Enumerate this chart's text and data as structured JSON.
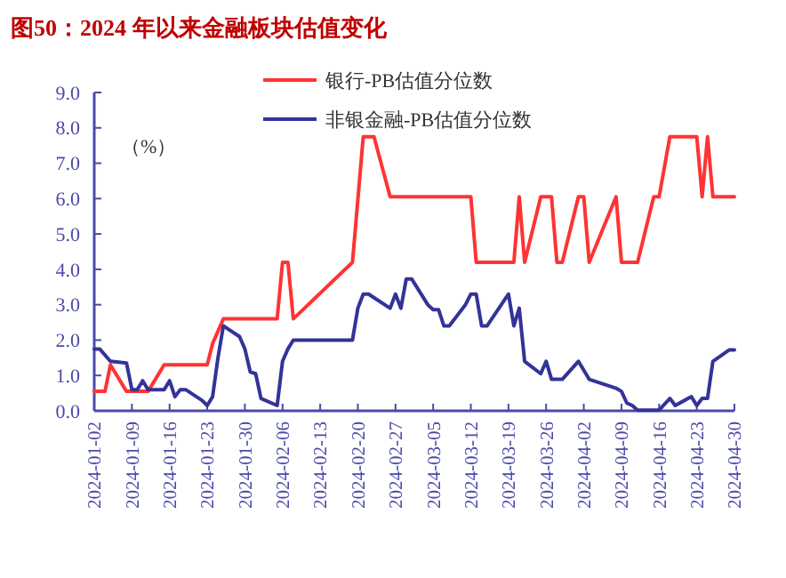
{
  "chart_data": {
    "type": "line",
    "title": "图50：2024 年以来金融板块估值变化",
    "ylabel": "（%）",
    "x": [
      "2024-01-02",
      "2024-01-04",
      "2024-01-05",
      "2024-01-08",
      "2024-01-12",
      "2024-01-15",
      "2024-01-23",
      "2024-01-24",
      "2024-01-26",
      "2024-02-05",
      "2024-02-06",
      "2024-02-07",
      "2024-02-08",
      "2024-02-19",
      "2024-02-21",
      "2024-02-23",
      "2024-02-26",
      "2024-03-12",
      "2024-03-13",
      "2024-03-20",
      "2024-03-21",
      "2024-03-22",
      "2024-03-25",
      "2024-03-27",
      "2024-03-28",
      "2024-03-29",
      "2024-04-01",
      "2024-04-02",
      "2024-04-03",
      "2024-04-08",
      "2024-04-09",
      "2024-04-12",
      "2024-04-15",
      "2024-04-16",
      "2024-04-18",
      "2024-04-23",
      "2024-04-24",
      "2024-04-25",
      "2024-04-26",
      "2024-04-30"
    ],
    "series": [
      {
        "name": "银行-PB估值分位数",
        "color": "#ff3333",
        "values": [
          0.55,
          0.55,
          1.3,
          0.55,
          0.55,
          1.3,
          1.3,
          1.9,
          2.6,
          2.6,
          4.2,
          4.2,
          2.6,
          4.2,
          7.75,
          7.75,
          6.05,
          6.05,
          4.2,
          4.2,
          6.05,
          4.2,
          6.05,
          6.05,
          4.2,
          4.2,
          6.05,
          6.05,
          4.2,
          6.05,
          4.2,
          4.2,
          6.05,
          6.05,
          7.75,
          7.75,
          6.05,
          7.75,
          6.05,
          6.05
        ]
      },
      {
        "name": "非银金融-PB估值分位数",
        "color": "#333399",
        "x": [
          "2024-01-02",
          "2024-01-03",
          "2024-01-05",
          "2024-01-08",
          "2024-01-09",
          "2024-01-10",
          "2024-01-11",
          "2024-01-12",
          "2024-01-15",
          "2024-01-16",
          "2024-01-17",
          "2024-01-18",
          "2024-01-19",
          "2024-01-22",
          "2024-01-23",
          "2024-01-24",
          "2024-01-25",
          "2024-01-26",
          "2024-01-29",
          "2024-01-30",
          "2024-01-31",
          "2024-02-01",
          "2024-02-02",
          "2024-02-05",
          "2024-02-06",
          "2024-02-07",
          "2024-02-08",
          "2024-02-19",
          "2024-02-20",
          "2024-02-21",
          "2024-02-22",
          "2024-02-23",
          "2024-02-26",
          "2024-02-27",
          "2024-02-28",
          "2024-02-29",
          "2024-03-01",
          "2024-03-04",
          "2024-03-05",
          "2024-03-06",
          "2024-03-07",
          "2024-03-08",
          "2024-03-11",
          "2024-03-12",
          "2024-03-13",
          "2024-03-14",
          "2024-03-15",
          "2024-03-19",
          "2024-03-20",
          "2024-03-21",
          "2024-03-22",
          "2024-03-25",
          "2024-03-26",
          "2024-03-27",
          "2024-03-29",
          "2024-04-01",
          "2024-04-03",
          "2024-04-08",
          "2024-04-09",
          "2024-04-10",
          "2024-04-11",
          "2024-04-12",
          "2024-04-16",
          "2024-04-18",
          "2024-04-19",
          "2024-04-22",
          "2024-04-23",
          "2024-04-24",
          "2024-04-25",
          "2024-04-26",
          "2024-04-29",
          "2024-04-30"
        ],
        "values": [
          1.75,
          1.75,
          1.4,
          1.35,
          0.6,
          0.6,
          0.85,
          0.6,
          0.6,
          0.85,
          0.4,
          0.6,
          0.6,
          0.3,
          0.15,
          0.4,
          1.5,
          2.4,
          2.1,
          1.75,
          1.1,
          1.05,
          0.35,
          0.15,
          1.4,
          1.75,
          2.0,
          2.0,
          2.9,
          3.3,
          3.3,
          3.2,
          2.9,
          3.3,
          2.9,
          3.73,
          3.73,
          3.0,
          2.86,
          2.86,
          2.4,
          2.4,
          3.0,
          3.3,
          3.3,
          2.4,
          2.4,
          3.3,
          2.4,
          2.9,
          1.4,
          1.05,
          1.4,
          0.89,
          0.89,
          1.4,
          0.89,
          0.64,
          0.55,
          0.22,
          0.15,
          0.02,
          0.02,
          0.35,
          0.15,
          0.4,
          0.15,
          0.35,
          0.35,
          1.4,
          1.72,
          1.72
        ]
      }
    ],
    "ylim": [
      0,
      9
    ],
    "yticks": [
      {
        "value": 0,
        "label": "0.0"
      },
      {
        "value": 1,
        "label": "1.0"
      },
      {
        "value": 2,
        "label": "2.0"
      },
      {
        "value": 3,
        "label": "3.0"
      },
      {
        "value": 4,
        "label": "4.0"
      },
      {
        "value": 5,
        "label": "5.0"
      },
      {
        "value": 6,
        "label": "6.0"
      },
      {
        "value": 7,
        "label": "7.0"
      },
      {
        "value": 8,
        "label": "8.0"
      },
      {
        "value": 9,
        "label": "9.0"
      }
    ],
    "xlim": [
      "2024-01-02",
      "2024-04-30"
    ],
    "xticks": [
      "2024-01-02",
      "2024-01-09",
      "2024-01-16",
      "2024-01-23",
      "2024-01-30",
      "2024-02-06",
      "2024-02-13",
      "2024-02-20",
      "2024-02-27",
      "2024-03-05",
      "2024-03-12",
      "2024-03-19",
      "2024-03-26",
      "2024-04-02",
      "2024-04-09",
      "2024-04-16",
      "2024-04-23",
      "2024-04-30"
    ],
    "legend": "top",
    "grid": false,
    "marker": "none",
    "line_style": "solid"
  }
}
